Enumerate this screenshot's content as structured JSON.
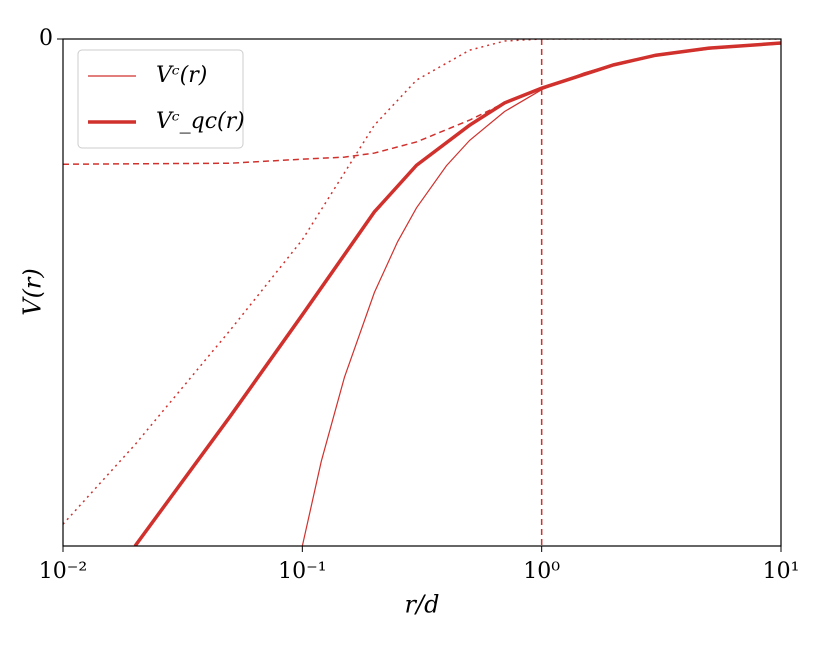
{
  "chart_data": {
    "type": "line",
    "xscale": "log",
    "xlim": [
      0.01,
      10
    ],
    "ylim": [
      -1,
      0
    ],
    "xticks": [
      {
        "value": 0.01,
        "label": "10⁻²"
      },
      {
        "value": 0.1,
        "label": "10⁻¹"
      },
      {
        "value": 1,
        "label": "10⁰"
      },
      {
        "value": 10,
        "label": "10¹"
      }
    ],
    "yticks": [
      0
    ],
    "x_label": "r/d",
    "y_label": "V(r)",
    "vlines": [
      1
    ],
    "legend": "upper left",
    "series": [
      {
        "name": "Vᶜ(r)",
        "color": "#d0312d",
        "linestyle": "solid",
        "linewidth": 1.2,
        "x": [
          0.1,
          0.12,
          0.15,
          0.2,
          0.25,
          0.3,
          0.4,
          0.5,
          0.7,
          1,
          1.5,
          2,
          3,
          5,
          7,
          10
        ],
        "values": [
          -1,
          -0.833,
          -0.667,
          -0.5,
          -0.4,
          -0.333,
          -0.25,
          -0.2,
          -0.143,
          -0.1,
          -0.067,
          -0.05,
          -0.033,
          -0.02,
          -0.014,
          -0.01
        ]
      },
      {
        "name": "Vᶜ_qc(r)",
        "color": "#d0312d",
        "linestyle": "solid",
        "linewidth": 3.5,
        "x": [
          0.02,
          0.05,
          0.1,
          0.2,
          0.3,
          0.5,
          0.7,
          1,
          2,
          3,
          5,
          10
        ],
        "values": [
          -1,
          -0.744,
          -0.544,
          -0.341,
          -0.249,
          -0.17,
          -0.126,
          -0.097,
          -0.051,
          -0.032,
          -0.018,
          -0.008
        ]
      },
      {
        "color": "#d0312d",
        "linestyle": "dashed",
        "linewidth": 1.5,
        "x": [
          0.01,
          0.05,
          0.1,
          0.15,
          0.2,
          0.3,
          0.5,
          0.7,
          0.8
        ],
        "values": [
          -0.247,
          -0.245,
          -0.237,
          -0.233,
          -0.225,
          -0.203,
          -0.16,
          -0.126,
          -0.115
        ]
      },
      {
        "color": "#d0312d",
        "linestyle": "dotted",
        "linewidth": 1.5,
        "x": [
          0.01,
          0.02,
          0.05,
          0.1,
          0.2,
          0.3,
          0.5,
          0.7,
          1,
          10
        ],
        "values": [
          -0.957,
          -0.8,
          -0.574,
          -0.396,
          -0.17,
          -0.081,
          -0.022,
          -0.004,
          0,
          0
        ]
      }
    ]
  }
}
